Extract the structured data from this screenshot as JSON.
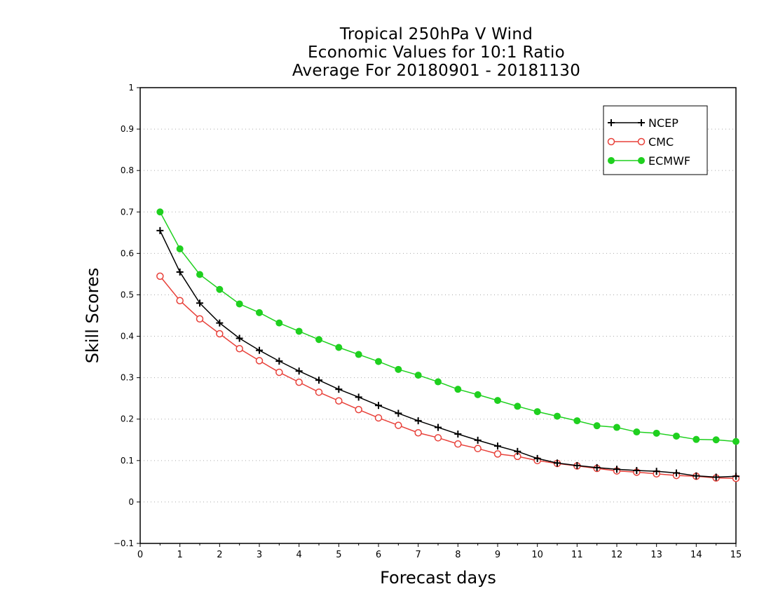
{
  "chart_data": {
    "type": "line",
    "title_lines": [
      "Tropical 250hPa V Wind",
      "Economic Values for 10:1 Ratio",
      "Average For 20180901 - 20181130"
    ],
    "xlabel": "Forecast days",
    "ylabel": "Skill Scores",
    "xlim": [
      0,
      15
    ],
    "ylim": [
      -0.1,
      1
    ],
    "x_ticks": [
      "0",
      "1",
      "2",
      "3",
      "4",
      "5",
      "6",
      "7",
      "8",
      "9",
      "10",
      "11",
      "12",
      "13",
      "14",
      "15"
    ],
    "y_ticks": [
      "−0.1",
      "0",
      "0.1",
      "0.2",
      "0.3",
      "0.4",
      "0.5",
      "0.6",
      "0.7",
      "0.8",
      "0.9",
      "1"
    ],
    "grid": "horizontal dotted",
    "legend_position": "top-right",
    "x": [
      0.5,
      1,
      1.5,
      2,
      2.5,
      3,
      3.5,
      4,
      4.5,
      5,
      5.5,
      6,
      6.5,
      7,
      7.5,
      8,
      8.5,
      9,
      9.5,
      10,
      10.5,
      11,
      11.5,
      12,
      12.5,
      13,
      13.5,
      14,
      14.5,
      15
    ],
    "series": [
      {
        "name": "NCEP",
        "color": "#000000",
        "marker": "plus",
        "values": [
          0.655,
          0.555,
          0.48,
          0.432,
          0.395,
          0.366,
          0.34,
          0.316,
          0.294,
          0.272,
          0.253,
          0.233,
          0.214,
          0.196,
          0.18,
          0.164,
          0.149,
          0.135,
          0.122,
          0.105,
          0.094,
          0.088,
          0.083,
          0.079,
          0.076,
          0.074,
          0.07,
          0.063,
          0.06,
          0.062
        ]
      },
      {
        "name": "CMC",
        "color": "#e8413a",
        "marker": "open-circle",
        "values": [
          0.545,
          0.486,
          0.442,
          0.406,
          0.37,
          0.341,
          0.313,
          0.289,
          0.265,
          0.244,
          0.223,
          0.203,
          0.185,
          0.167,
          0.155,
          0.14,
          0.129,
          0.116,
          0.11,
          0.1,
          0.093,
          0.087,
          0.081,
          0.075,
          0.072,
          0.068,
          0.064,
          0.062,
          0.058,
          0.057
        ]
      },
      {
        "name": "ECMWF",
        "color": "#1fd01f",
        "marker": "filled-circle",
        "values": [
          0.7,
          0.611,
          0.549,
          0.513,
          0.478,
          0.457,
          0.432,
          0.412,
          0.392,
          0.373,
          0.356,
          0.339,
          0.32,
          0.306,
          0.29,
          0.272,
          0.259,
          0.245,
          0.231,
          0.218,
          0.207,
          0.196,
          0.184,
          0.18,
          0.169,
          0.166,
          0.159,
          0.151,
          0.15,
          0.146
        ]
      }
    ]
  }
}
